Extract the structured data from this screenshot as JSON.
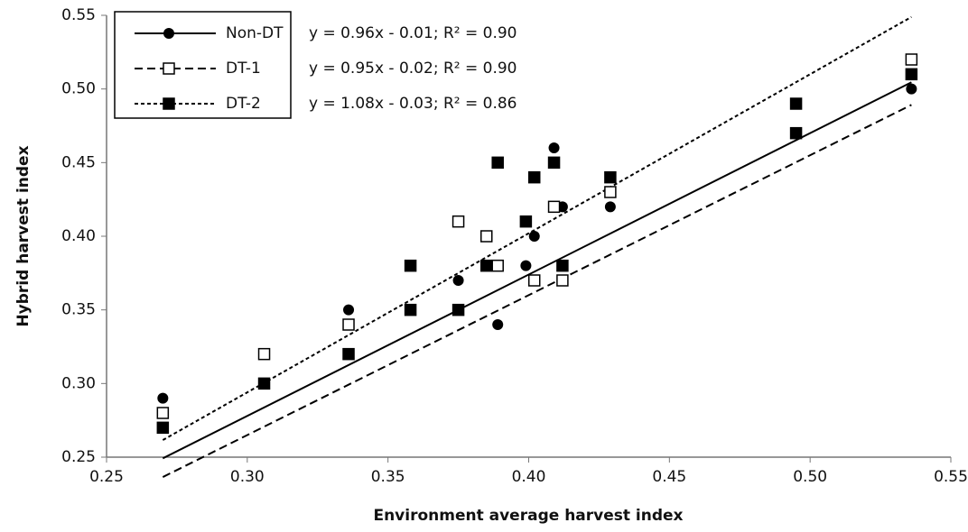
{
  "chart_data": {
    "type": "scatter",
    "x_label": "Environment average harvest index",
    "y_label": "Hybrid harvest index",
    "xlim": [
      0.25,
      0.55
    ],
    "xticks": [
      0.25,
      {
        "value": 0.3,
        "label": "0.30"
      },
      0.35,
      {
        "value": 0.4,
        "label": "0.40"
      },
      0.45,
      {
        "value": 0.5,
        "label": "0.50"
      },
      0.55
    ],
    "ylim": [
      0.25,
      0.55
    ],
    "yticks": [
      0.25,
      {
        "value": 0.3,
        "label": "0.30"
      },
      0.35,
      {
        "value": 0.4,
        "label": "0.40"
      },
      0.45,
      {
        "value": 0.5,
        "label": "0.50"
      },
      0.55
    ],
    "grid": false,
    "legend": "upper left",
    "series": [
      {
        "name": "Non-DT",
        "color": "#000000",
        "marker": "circle",
        "line_style": "solid",
        "x": [
          0.27,
          0.336,
          0.375,
          0.389,
          0.399,
          0.402,
          0.412,
          0.409,
          0.429,
          0.495,
          0.536
        ],
        "values": [
          0.29,
          0.35,
          0.37,
          0.34,
          0.38,
          0.4,
          0.42,
          0.46,
          0.42,
          0.47,
          0.5
        ],
        "fit": {
          "slope": 0.96,
          "intercept": -0.01,
          "r2": 0.9,
          "label": "y = 0.96x - 0.01; R² = 0.90"
        }
      },
      {
        "name": "DT-1",
        "color": "#000000",
        "marker": "open-square",
        "line_style": "dashed",
        "x": [
          0.27,
          0.306,
          0.336,
          0.375,
          0.385,
          0.389,
          0.402,
          0.412,
          0.409,
          0.429,
          0.536
        ],
        "values": [
          0.28,
          0.32,
          0.34,
          0.41,
          0.4,
          0.38,
          0.37,
          0.37,
          0.42,
          0.43,
          0.52
        ],
        "fit": {
          "slope": 0.95,
          "intercept": -0.02,
          "r2": 0.9,
          "label": "y = 0.95x - 0.02; R² = 0.90"
        }
      },
      {
        "name": "DT-2",
        "color": "#000000",
        "marker": "square",
        "line_style": "dotted",
        "x": [
          0.27,
          0.306,
          0.336,
          0.358,
          0.358,
          0.375,
          0.385,
          0.389,
          0.399,
          0.402,
          0.409,
          0.412,
          0.429,
          0.495,
          0.495,
          0.536
        ],
        "values": [
          0.27,
          0.3,
          0.32,
          0.38,
          0.35,
          0.35,
          0.38,
          0.45,
          0.41,
          0.44,
          0.45,
          0.38,
          0.44,
          0.49,
          0.47,
          0.51
        ],
        "fit": {
          "slope": 1.08,
          "intercept": -0.03,
          "r2": 0.86,
          "label": "y = 1.08x - 0.03; R² = 0.86"
        }
      }
    ]
  }
}
